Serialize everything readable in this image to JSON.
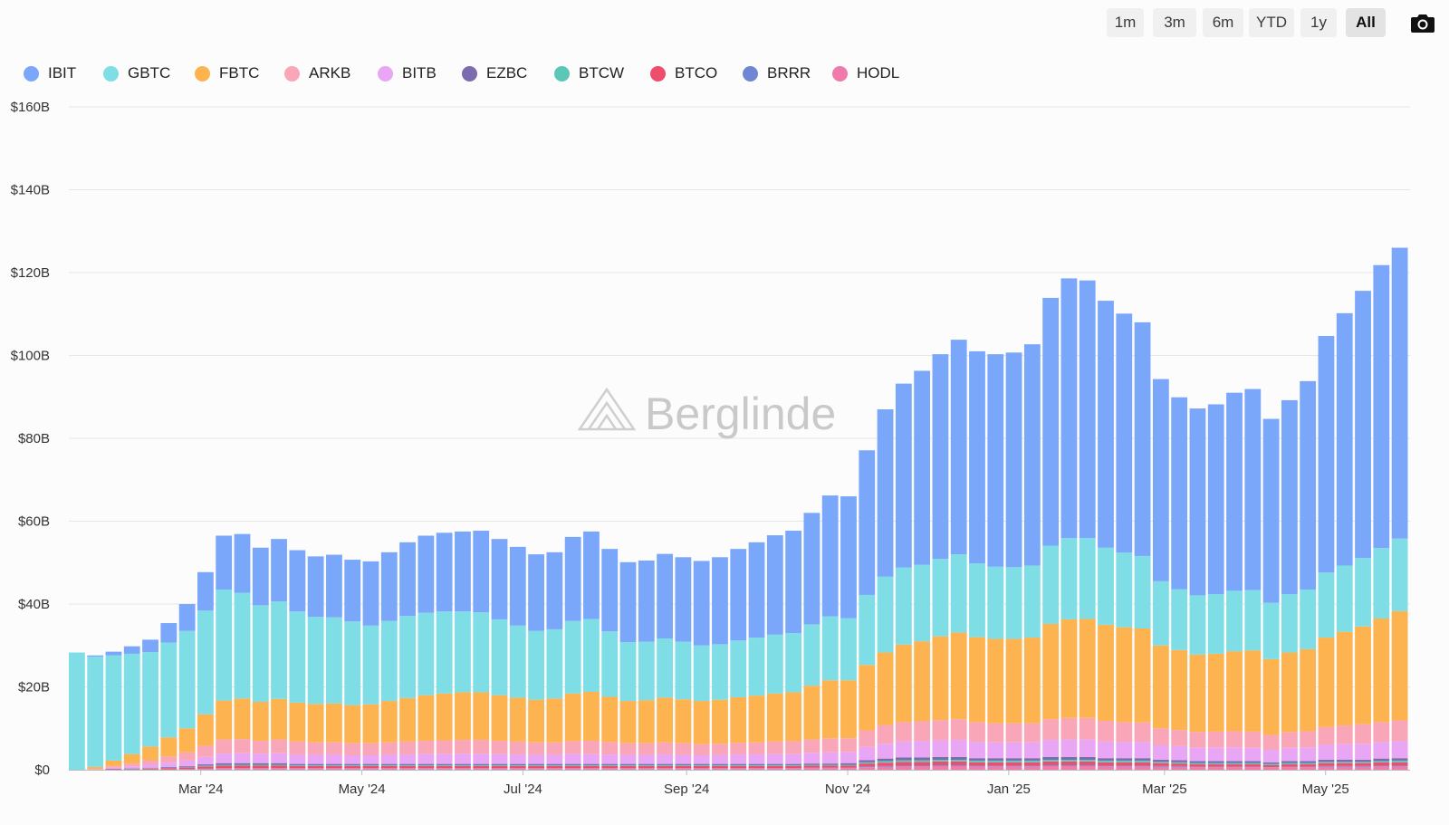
{
  "toolbar": {
    "ranges": [
      "1m",
      "3m",
      "6m",
      "YTD",
      "1y",
      "All"
    ],
    "active_range": "All",
    "camera_icon": "camera-icon"
  },
  "watermark": "Berglinde",
  "colors": {
    "IBIT": "#7aa7fa",
    "GBTC": "#7fdde6",
    "FBTC": "#fdb34f",
    "ARKB": "#f9a6b8",
    "BITB": "#e8a6f5",
    "EZBC": "#7b6cae",
    "BTCW": "#5cc7b7",
    "BTCO": "#ef4d6c",
    "BRRR": "#6f86d4",
    "HODL": "#f07aa9"
  },
  "chart_data": {
    "type": "area",
    "stacked": true,
    "title": "",
    "xlabel": "",
    "ylabel": "",
    "ylim": [
      0,
      160
    ],
    "y_unit": "billion USD",
    "yticks": [
      "$0",
      "$20B",
      "$40B",
      "$60B",
      "$80B",
      "$100B",
      "$120B",
      "$140B",
      "$160B"
    ],
    "xticks": [
      {
        "date": "2024-03-01",
        "label": "Mar '24"
      },
      {
        "date": "2024-05-01",
        "label": "May '24"
      },
      {
        "date": "2024-07-01",
        "label": "Jul '24"
      },
      {
        "date": "2024-09-01",
        "label": "Sep '24"
      },
      {
        "date": "2024-11-01",
        "label": "Nov '24"
      },
      {
        "date": "2025-01-01",
        "label": "Jan '25"
      },
      {
        "date": "2025-03-01",
        "label": "Mar '25"
      },
      {
        "date": "2025-05-01",
        "label": "May '25"
      }
    ],
    "x_range": [
      "2024-01-11",
      "2025-06-02"
    ],
    "grid": true,
    "legend": "top-left",
    "dates": [
      "2024-01-11",
      "2024-01-19",
      "2024-01-26",
      "2024-02-02",
      "2024-02-09",
      "2024-02-16",
      "2024-02-23",
      "2024-03-01",
      "2024-03-08",
      "2024-03-15",
      "2024-03-22",
      "2024-03-29",
      "2024-04-05",
      "2024-04-12",
      "2024-04-19",
      "2024-04-26",
      "2024-05-03",
      "2024-05-10",
      "2024-05-17",
      "2024-05-24",
      "2024-05-31",
      "2024-06-07",
      "2024-06-14",
      "2024-06-21",
      "2024-06-28",
      "2024-07-05",
      "2024-07-12",
      "2024-07-19",
      "2024-07-26",
      "2024-08-02",
      "2024-08-09",
      "2024-08-16",
      "2024-08-23",
      "2024-08-30",
      "2024-09-06",
      "2024-09-13",
      "2024-09-20",
      "2024-09-27",
      "2024-10-04",
      "2024-10-11",
      "2024-10-18",
      "2024-10-25",
      "2024-11-01",
      "2024-11-08",
      "2024-11-15",
      "2024-11-22",
      "2024-11-29",
      "2024-12-06",
      "2024-12-13",
      "2024-12-20",
      "2024-12-27",
      "2025-01-03",
      "2025-01-10",
      "2025-01-17",
      "2025-01-24",
      "2025-01-31",
      "2025-02-07",
      "2025-02-14",
      "2025-02-21",
      "2025-02-28",
      "2025-03-07",
      "2025-03-14",
      "2025-03-21",
      "2025-03-28",
      "2025-04-04",
      "2025-04-11",
      "2025-04-18",
      "2025-04-25",
      "2025-05-02",
      "2025-05-09",
      "2025-05-16",
      "2025-05-23",
      "2025-05-30"
    ],
    "series": [
      {
        "name": "HODL",
        "values": [
          0,
          0,
          0,
          0,
          0.1,
          0.1,
          0.1,
          0.2,
          0.3,
          0.3,
          0.3,
          0.3,
          0.3,
          0.3,
          0.3,
          0.3,
          0.3,
          0.3,
          0.3,
          0.3,
          0.3,
          0.3,
          0.3,
          0.3,
          0.3,
          0.3,
          0.3,
          0.3,
          0.3,
          0.3,
          0.3,
          0.3,
          0.3,
          0.3,
          0.3,
          0.3,
          0.3,
          0.3,
          0.3,
          0.3,
          0.4,
          0.4,
          0.4,
          0.6,
          0.7,
          0.8,
          0.8,
          0.9,
          0.9,
          0.8,
          0.8,
          0.8,
          0.8,
          0.9,
          0.9,
          0.9,
          0.8,
          0.8,
          0.8,
          0.7,
          0.7,
          0.6,
          0.6,
          0.6,
          0.6,
          0.5,
          0.6,
          0.6,
          0.7,
          0.7,
          0.7,
          0.8,
          0.8
        ]
      },
      {
        "name": "BRRR",
        "values": [
          0,
          0,
          0,
          0,
          0,
          0,
          0.1,
          0.1,
          0.1,
          0.1,
          0.1,
          0.1,
          0.1,
          0.1,
          0.1,
          0.1,
          0.1,
          0.1,
          0.1,
          0.1,
          0.1,
          0.1,
          0.1,
          0.1,
          0.1,
          0.1,
          0.1,
          0.1,
          0.1,
          0.1,
          0.1,
          0.1,
          0.1,
          0.1,
          0.1,
          0.1,
          0.1,
          0.1,
          0.1,
          0.1,
          0.1,
          0.1,
          0.1,
          0.2,
          0.2,
          0.2,
          0.2,
          0.2,
          0.2,
          0.2,
          0.2,
          0.2,
          0.2,
          0.2,
          0.2,
          0.2,
          0.2,
          0.2,
          0.2,
          0.2,
          0.2,
          0.1,
          0.1,
          0.1,
          0.1,
          0.1,
          0.1,
          0.1,
          0.2,
          0.2,
          0.2,
          0.2,
          0.2
        ]
      },
      {
        "name": "BTCO",
        "values": [
          0,
          0,
          0.1,
          0.1,
          0.2,
          0.3,
          0.4,
          0.5,
          0.6,
          0.6,
          0.6,
          0.6,
          0.5,
          0.5,
          0.5,
          0.5,
          0.5,
          0.5,
          0.5,
          0.5,
          0.5,
          0.5,
          0.5,
          0.5,
          0.5,
          0.5,
          0.5,
          0.5,
          0.5,
          0.5,
          0.5,
          0.5,
          0.5,
          0.5,
          0.5,
          0.5,
          0.5,
          0.5,
          0.5,
          0.5,
          0.5,
          0.5,
          0.5,
          0.7,
          0.8,
          0.9,
          0.9,
          0.9,
          0.9,
          0.8,
          0.8,
          0.8,
          0.8,
          0.9,
          0.9,
          0.9,
          0.8,
          0.8,
          0.8,
          0.7,
          0.6,
          0.6,
          0.6,
          0.6,
          0.6,
          0.5,
          0.6,
          0.6,
          0.7,
          0.7,
          0.7,
          0.8,
          0.8
        ]
      },
      {
        "name": "BTCW",
        "values": [
          0,
          0,
          0,
          0.1,
          0.1,
          0.1,
          0.1,
          0.2,
          0.2,
          0.2,
          0.2,
          0.2,
          0.2,
          0.2,
          0.2,
          0.2,
          0.2,
          0.2,
          0.2,
          0.2,
          0.2,
          0.2,
          0.2,
          0.2,
          0.2,
          0.2,
          0.2,
          0.2,
          0.2,
          0.2,
          0.2,
          0.2,
          0.2,
          0.2,
          0.2,
          0.2,
          0.2,
          0.2,
          0.2,
          0.2,
          0.2,
          0.2,
          0.2,
          0.3,
          0.4,
          0.4,
          0.4,
          0.4,
          0.4,
          0.4,
          0.4,
          0.4,
          0.4,
          0.4,
          0.4,
          0.4,
          0.4,
          0.4,
          0.4,
          0.3,
          0.3,
          0.3,
          0.3,
          0.3,
          0.3,
          0.3,
          0.3,
          0.3,
          0.3,
          0.3,
          0.3,
          0.3,
          0.4
        ]
      },
      {
        "name": "EZBC",
        "values": [
          0,
          0,
          0.1,
          0.1,
          0.1,
          0.2,
          0.2,
          0.3,
          0.4,
          0.4,
          0.4,
          0.4,
          0.3,
          0.3,
          0.3,
          0.3,
          0.3,
          0.3,
          0.3,
          0.3,
          0.3,
          0.3,
          0.3,
          0.3,
          0.3,
          0.3,
          0.3,
          0.3,
          0.3,
          0.3,
          0.3,
          0.3,
          0.3,
          0.3,
          0.3,
          0.3,
          0.3,
          0.3,
          0.3,
          0.3,
          0.3,
          0.3,
          0.4,
          0.5,
          0.6,
          0.7,
          0.7,
          0.7,
          0.7,
          0.6,
          0.6,
          0.6,
          0.6,
          0.7,
          0.7,
          0.7,
          0.6,
          0.6,
          0.6,
          0.5,
          0.5,
          0.5,
          0.5,
          0.5,
          0.5,
          0.4,
          0.5,
          0.5,
          0.5,
          0.5,
          0.5,
          0.6,
          0.6
        ]
      },
      {
        "name": "BITB",
        "values": [
          0,
          0.1,
          0.3,
          0.5,
          0.7,
          1.0,
          1.3,
          1.8,
          2.3,
          2.4,
          2.3,
          2.4,
          2.2,
          2.2,
          2.2,
          2.1,
          2.1,
          2.2,
          2.3,
          2.4,
          2.4,
          2.5,
          2.5,
          2.4,
          2.3,
          2.2,
          2.2,
          2.4,
          2.4,
          2.3,
          2.2,
          2.2,
          2.3,
          2.2,
          2.1,
          2.2,
          2.3,
          2.3,
          2.4,
          2.4,
          2.6,
          2.7,
          2.7,
          3.2,
          3.6,
          3.8,
          3.9,
          4.0,
          4.1,
          3.9,
          3.8,
          3.8,
          3.8,
          4.1,
          4.2,
          4.2,
          4.0,
          3.9,
          3.9,
          3.5,
          3.4,
          3.2,
          3.3,
          3.3,
          3.2,
          3.0,
          3.2,
          3.3,
          3.6,
          3.8,
          3.9,
          4.0,
          4.1
        ]
      },
      {
        "name": "ARKB",
        "values": [
          0,
          0.1,
          0.4,
          0.7,
          1.1,
          1.5,
          2.0,
          2.7,
          3.4,
          3.4,
          3.1,
          3.3,
          3.2,
          3.0,
          3.0,
          2.9,
          2.9,
          3.0,
          3.1,
          3.2,
          3.3,
          3.3,
          3.3,
          3.2,
          3.1,
          3.0,
          3.0,
          3.1,
          3.2,
          3.0,
          2.8,
          2.8,
          2.9,
          2.8,
          2.7,
          2.7,
          2.8,
          2.9,
          3.0,
          3.1,
          3.2,
          3.4,
          3.3,
          4.0,
          4.5,
          4.7,
          4.8,
          4.9,
          5.0,
          4.8,
          4.6,
          4.6,
          4.6,
          5.0,
          5.2,
          5.2,
          5.0,
          4.8,
          4.7,
          4.1,
          3.9,
          3.8,
          3.8,
          3.9,
          3.9,
          3.6,
          3.8,
          3.9,
          4.3,
          4.5,
          4.7,
          4.8,
          5.0
        ]
      },
      {
        "name": "FBTC",
        "values": [
          0,
          0.5,
          1.3,
          2.3,
          3.3,
          4.6,
          5.8,
          7.6,
          9.4,
          9.8,
          9.4,
          9.8,
          9.4,
          9.3,
          9.4,
          9.2,
          9.4,
          10.0,
          10.5,
          11.0,
          11.3,
          11.5,
          11.5,
          11.0,
          10.6,
          10.3,
          10.6,
          11.5,
          11.8,
          10.9,
          10.2,
          10.4,
          10.8,
          10.6,
          10.4,
          10.6,
          11.0,
          11.3,
          11.6,
          11.8,
          13.0,
          14.0,
          14.0,
          15.8,
          17.5,
          18.7,
          19.3,
          20.2,
          20.9,
          20.5,
          20.4,
          20.4,
          20.7,
          23.0,
          23.8,
          23.9,
          23.2,
          22.9,
          22.7,
          20.0,
          19.3,
          18.7,
          18.8,
          19.3,
          19.6,
          18.3,
          19.2,
          19.8,
          21.6,
          22.6,
          23.6,
          25.0,
          26.4
        ]
      },
      {
        "name": "GBTC",
        "values": [
          28.3,
          26.6,
          25.4,
          24.2,
          22.8,
          22.9,
          23.5,
          25.0,
          26.8,
          25.5,
          23.3,
          23.5,
          22.0,
          21.0,
          20.8,
          20.2,
          19.0,
          19.3,
          19.8,
          19.9,
          19.8,
          19.5,
          19.3,
          18.3,
          17.4,
          16.6,
          16.7,
          17.5,
          17.6,
          15.8,
          14.2,
          14.1,
          14.3,
          13.9,
          13.4,
          13.4,
          13.7,
          14.0,
          14.2,
          14.3,
          14.8,
          15.4,
          15.0,
          16.9,
          18.3,
          18.6,
          18.5,
          18.7,
          18.9,
          17.8,
          17.4,
          17.3,
          17.4,
          18.9,
          19.6,
          19.5,
          18.6,
          18.0,
          17.5,
          15.5,
          14.7,
          14.3,
          14.4,
          14.6,
          14.6,
          13.6,
          14.1,
          14.4,
          15.7,
          16.0,
          16.5,
          17.0,
          17.5
        ]
      },
      {
        "name": "IBIT",
        "values": [
          0,
          0.3,
          0.9,
          1.8,
          3.0,
          4.7,
          6.5,
          9.3,
          13.0,
          14.2,
          13.9,
          15.1,
          14.8,
          14.6,
          15.1,
          14.9,
          15.5,
          16.6,
          17.8,
          18.6,
          19.0,
          19.3,
          19.7,
          19.4,
          19.0,
          18.5,
          18.6,
          20.3,
          21.1,
          19.9,
          19.3,
          19.6,
          20.4,
          20.4,
          20.4,
          21.0,
          22.1,
          23.0,
          24.0,
          24.7,
          26.9,
          29.2,
          29.4,
          34.9,
          40.4,
          44.4,
          46.8,
          49.4,
          51.8,
          51.2,
          51.3,
          51.8,
          53.4,
          59.8,
          62.7,
          62.2,
          59.6,
          57.7,
          56.4,
          48.8,
          46.3,
          45.1,
          45.8,
          47.8,
          48.5,
          44.4,
          46.8,
          50.3,
          57.1,
          60.9,
          64.5,
          68.3,
          70.2
        ]
      }
    ]
  }
}
